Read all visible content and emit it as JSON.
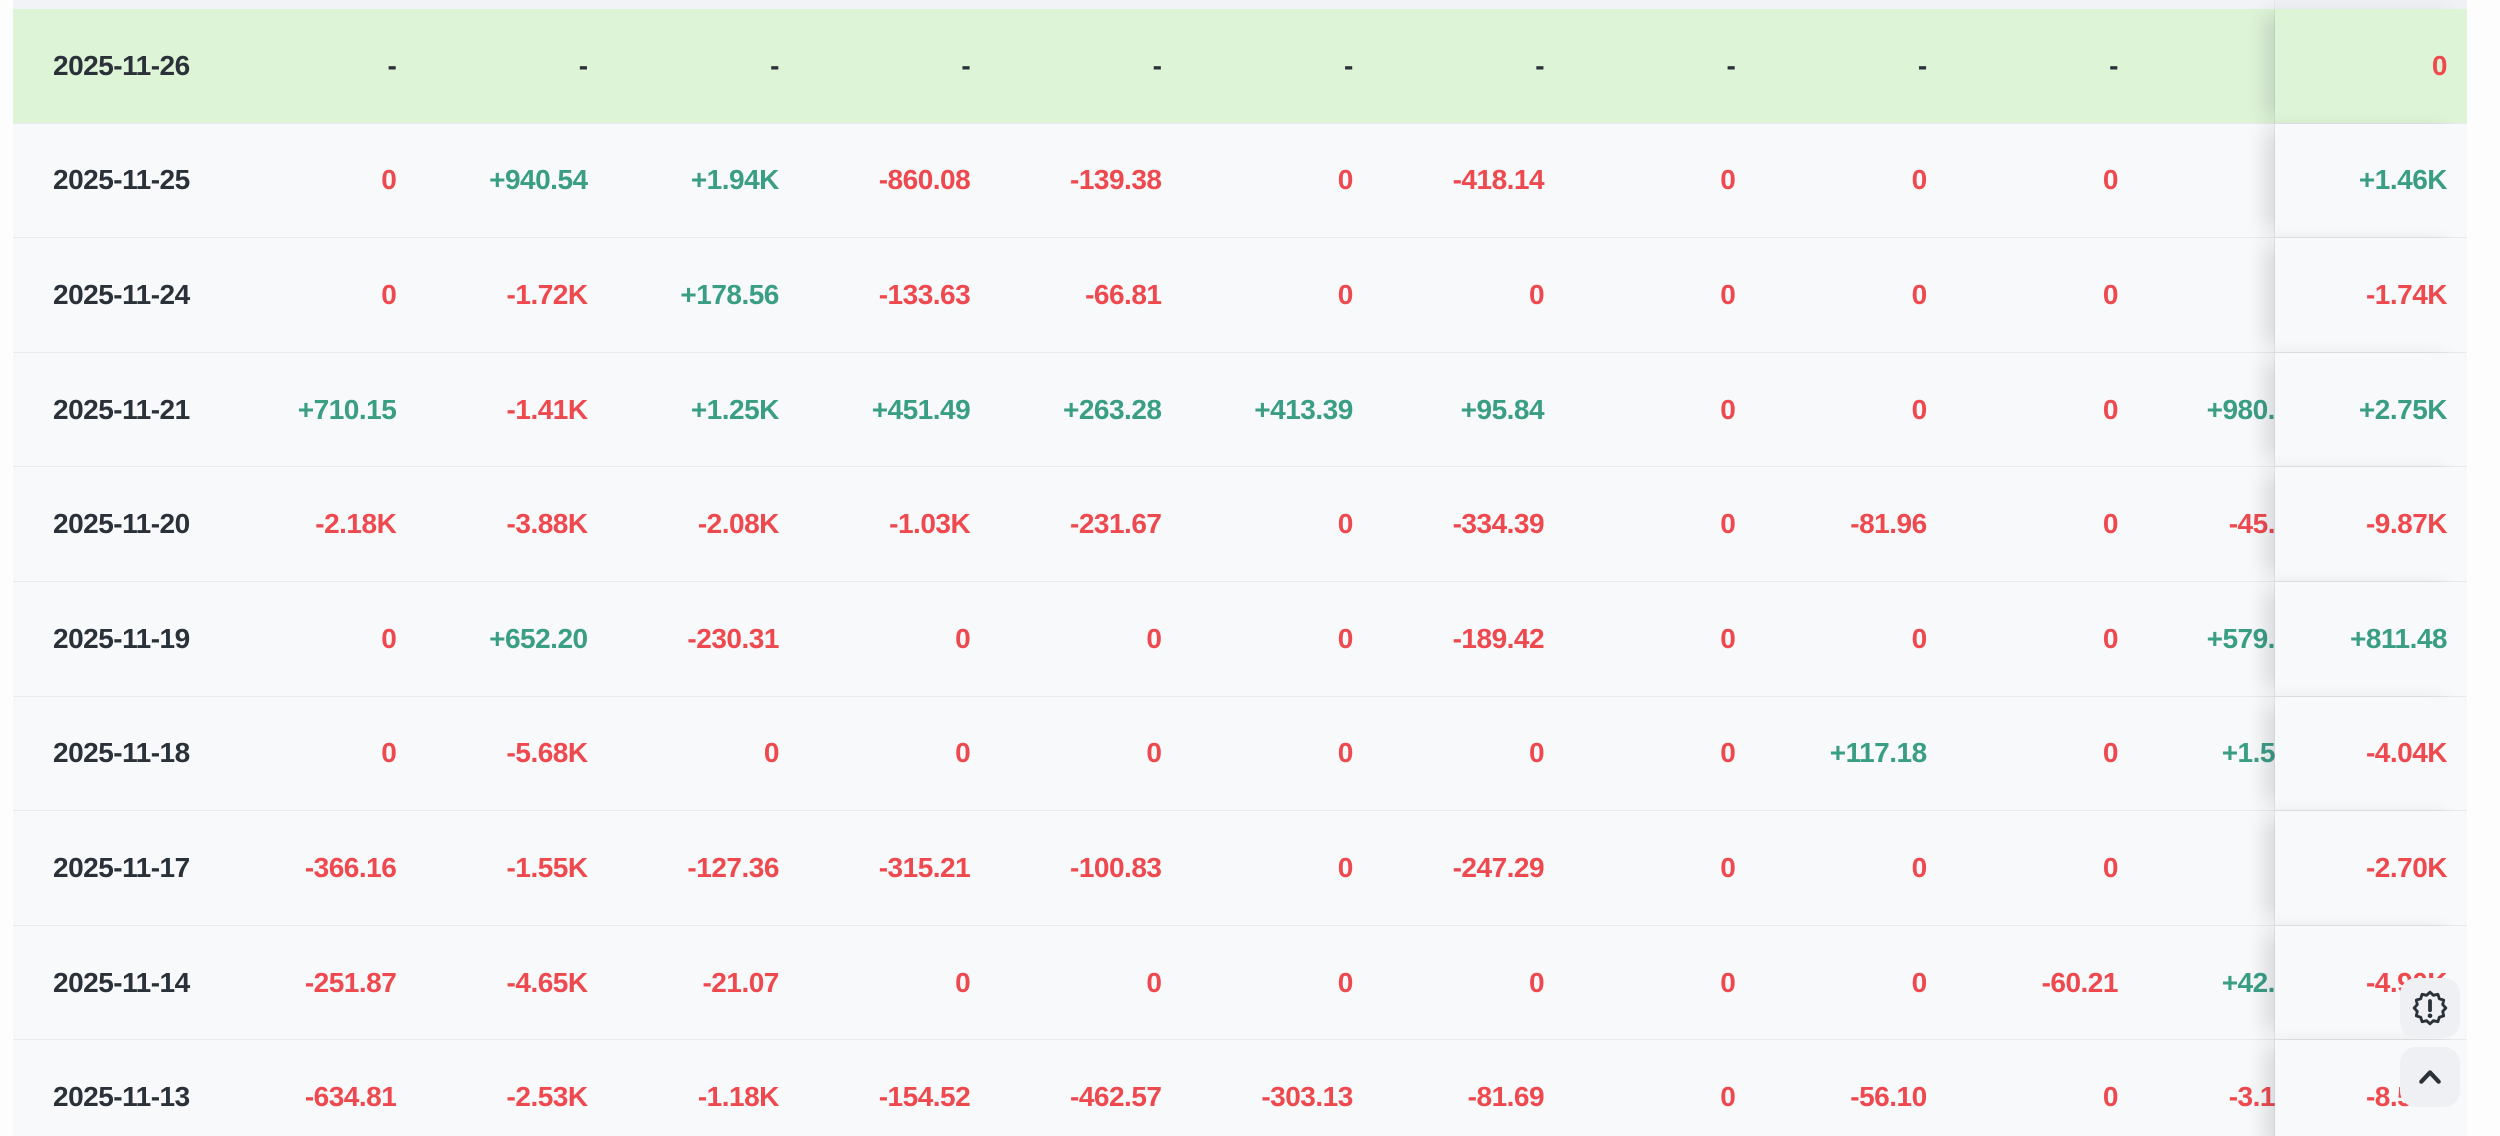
{
  "colors": {
    "positive_text": "#3a9e85",
    "negative_text": "#ee494f",
    "neutral_text": "#2b3139",
    "row_bg": "#f8f9fa",
    "highlight_row_bg": "#def4d7",
    "divider": "#e8eaed",
    "button_bg": "#eef0f3",
    "page_bg": "#fdfdfe"
  },
  "table": {
    "rows": [
      {
        "date": "2025-11-26",
        "highlighted": true,
        "values": [
          "-",
          "-",
          "-",
          "-",
          "-",
          "-",
          "-",
          "-",
          "-",
          "-"
        ],
        "overflow": "",
        "total": "0"
      },
      {
        "date": "2025-11-25",
        "highlighted": false,
        "values": [
          "0",
          "+940.54",
          "+1.94K",
          "-860.08",
          "-139.38",
          "0",
          "-418.14",
          "0",
          "0",
          "0"
        ],
        "overflow": "",
        "total": "+1.46K"
      },
      {
        "date": "2025-11-24",
        "highlighted": false,
        "values": [
          "0",
          "-1.72K",
          "+178.56",
          "-133.63",
          "-66.81",
          "0",
          "0",
          "0",
          "0",
          "0"
        ],
        "overflow": "",
        "total": "-1.74K"
      },
      {
        "date": "2025-11-21",
        "highlighted": false,
        "values": [
          "+710.15",
          "-1.41K",
          "+1.25K",
          "+451.49",
          "+263.28",
          "+413.39",
          "+95.84",
          "0",
          "0",
          "0"
        ],
        "overflow": "+980.",
        "total": "+2.75K"
      },
      {
        "date": "2025-11-20",
        "highlighted": false,
        "values": [
          "-2.18K",
          "-3.88K",
          "-2.08K",
          "-1.03K",
          "-231.67",
          "0",
          "-334.39",
          "0",
          "-81.96",
          "0"
        ],
        "overflow": "-45.",
        "total": "-9.87K"
      },
      {
        "date": "2025-11-19",
        "highlighted": false,
        "values": [
          "0",
          "+652.20",
          "-230.31",
          "0",
          "0",
          "0",
          "-189.42",
          "0",
          "0",
          "0"
        ],
        "overflow": "+579.",
        "total": "+811.48"
      },
      {
        "date": "2025-11-18",
        "highlighted": false,
        "values": [
          "0",
          "-5.68K",
          "0",
          "0",
          "0",
          "0",
          "0",
          "0",
          "+117.18",
          "0"
        ],
        "overflow": "+1.5",
        "total": "-4.04K"
      },
      {
        "date": "2025-11-17",
        "highlighted": false,
        "values": [
          "-366.16",
          "-1.55K",
          "-127.36",
          "-315.21",
          "-100.83",
          "0",
          "-247.29",
          "0",
          "0",
          "0"
        ],
        "overflow": "",
        "total": "-2.70K"
      },
      {
        "date": "2025-11-14",
        "highlighted": false,
        "values": [
          "-251.87",
          "-4.65K",
          "-21.07",
          "0",
          "0",
          "0",
          "0",
          "0",
          "0",
          "-60.21"
        ],
        "overflow": "+42.",
        "total": "-4.90K"
      },
      {
        "date": "2025-11-13",
        "highlighted": false,
        "values": [
          "-634.81",
          "-2.53K",
          "-1.18K",
          "-154.52",
          "-462.57",
          "-303.13",
          "-81.69",
          "0",
          "-56.10",
          "0"
        ],
        "overflow": "-3.1",
        "total": "-8.50K"
      }
    ]
  },
  "floating_buttons": {
    "alert_icon": "badge-exclamation-icon",
    "scroll_top_icon": "chevron-up-icon"
  }
}
